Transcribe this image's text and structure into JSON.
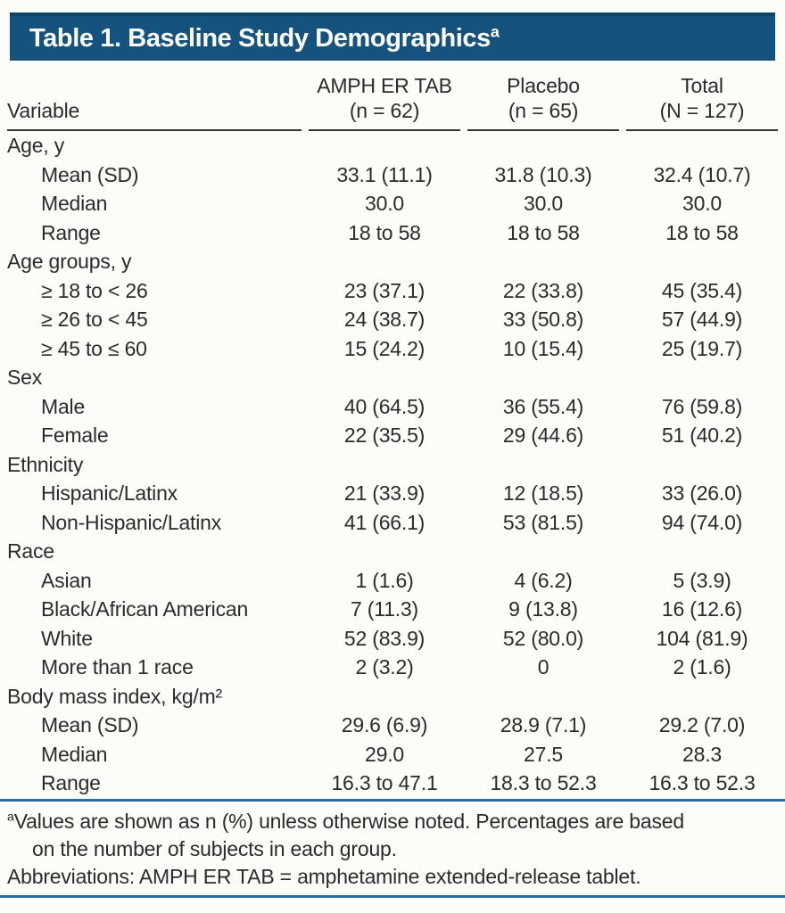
{
  "title": {
    "text": "Table 1. Baseline Study Demographics",
    "superscript": "a"
  },
  "colors": {
    "banner_blue": "#15537e",
    "banner_top_border": "#114263",
    "rule_blue": "#2c6da0",
    "header_rule": "#333333",
    "text": "#2b2b2b",
    "title_text": "#ffffff"
  },
  "table": {
    "columns": [
      {
        "line1": "",
        "line2": "Variable"
      },
      {
        "line1": "AMPH ER TAB",
        "line2": "(n = 62)"
      },
      {
        "line1": "Placebo",
        "line2": "(n = 65)"
      },
      {
        "line1": "Total",
        "line2": "(N = 127)"
      }
    ],
    "rows": [
      {
        "label": "Age, y",
        "indent": false,
        "values": [
          "",
          "",
          ""
        ]
      },
      {
        "label": "Mean (SD)",
        "indent": true,
        "values": [
          "33.1 (11.1)",
          "31.8 (10.3)",
          "32.4 (10.7)"
        ]
      },
      {
        "label": "Median",
        "indent": true,
        "values": [
          "30.0",
          "30.0",
          "30.0"
        ]
      },
      {
        "label": "Range",
        "indent": true,
        "values": [
          "18 to 58",
          "18 to 58",
          "18 to 58"
        ]
      },
      {
        "label": "Age groups, y",
        "indent": false,
        "values": [
          "",
          "",
          ""
        ]
      },
      {
        "label": "≥ 18 to < 26",
        "indent": true,
        "values": [
          "23 (37.1)",
          "22 (33.8)",
          "45 (35.4)"
        ]
      },
      {
        "label": "≥ 26 to < 45",
        "indent": true,
        "values": [
          "24 (38.7)",
          "33 (50.8)",
          "57 (44.9)"
        ]
      },
      {
        "label": "≥ 45 to ≤ 60",
        "indent": true,
        "values": [
          "15 (24.2)",
          "10 (15.4)",
          "25 (19.7)"
        ]
      },
      {
        "label": "Sex",
        "indent": false,
        "values": [
          "",
          "",
          ""
        ]
      },
      {
        "label": "Male",
        "indent": true,
        "values": [
          "40 (64.5)",
          "36 (55.4)",
          "76 (59.8)"
        ]
      },
      {
        "label": "Female",
        "indent": true,
        "values": [
          "22 (35.5)",
          "29 (44.6)",
          "51 (40.2)"
        ]
      },
      {
        "label": "Ethnicity",
        "indent": false,
        "values": [
          "",
          "",
          ""
        ]
      },
      {
        "label": "Hispanic/Latinx",
        "indent": true,
        "values": [
          "21 (33.9)",
          "12 (18.5)",
          "33 (26.0)"
        ]
      },
      {
        "label": "Non-Hispanic/Latinx",
        "indent": true,
        "values": [
          "41 (66.1)",
          "53 (81.5)",
          "94 (74.0)"
        ]
      },
      {
        "label": "Race",
        "indent": false,
        "values": [
          "",
          "",
          ""
        ]
      },
      {
        "label": "Asian",
        "indent": true,
        "values": [
          "1 (1.6)",
          "4 (6.2)",
          "5 (3.9)"
        ]
      },
      {
        "label": "Black/African American",
        "indent": true,
        "values": [
          "7 (11.3)",
          "9 (13.8)",
          "16 (12.6)"
        ]
      },
      {
        "label": "White",
        "indent": true,
        "values": [
          "52 (83.9)",
          "52 (80.0)",
          "104 (81.9)"
        ]
      },
      {
        "label": "More than 1 race",
        "indent": true,
        "values": [
          "2 (3.2)",
          "0",
          "2 (1.6)"
        ]
      },
      {
        "label": "Body mass index, kg/m²",
        "indent": false,
        "values": [
          "",
          "",
          ""
        ]
      },
      {
        "label": "Mean (SD)",
        "indent": true,
        "values": [
          "29.6 (6.9)",
          "28.9 (7.1)",
          "29.2 (7.0)"
        ]
      },
      {
        "label": "Median",
        "indent": true,
        "values": [
          "29.0",
          "27.5",
          "28.3"
        ]
      },
      {
        "label": "Range",
        "indent": true,
        "values": [
          "16.3 to 47.1",
          "18.3 to 52.3",
          "16.3 to 52.3"
        ]
      }
    ]
  },
  "footnotes": {
    "note_sup": "a",
    "note_line1": "Values are shown as n (%) unless otherwise noted. Percentages are based",
    "note_line2": "on the number of subjects in each group.",
    "abbreviations": "Abbreviations: AMPH ER TAB = amphetamine extended-release tablet."
  }
}
